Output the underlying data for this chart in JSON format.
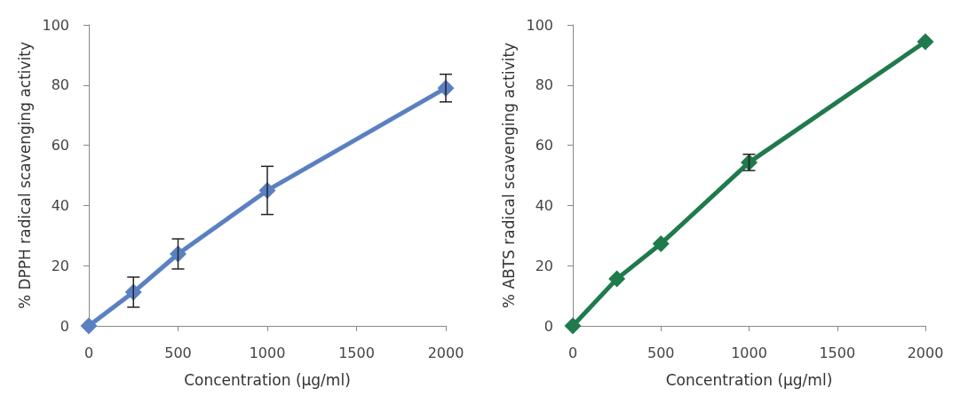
{
  "chart_data": [
    {
      "type": "line",
      "xlabel": "Concentration (µg/ml)",
      "ylabel": "% DPPH radical scavenging activity",
      "x": [
        0,
        250,
        500,
        1000,
        2000
      ],
      "series": [
        {
          "color": "#5b80c2",
          "values": [
            0,
            11.2,
            23.9,
            45,
            79
          ],
          "errors": [
            null,
            5,
            5,
            8,
            4.6
          ]
        }
      ],
      "xlim": [
        0,
        2000
      ],
      "xticks": [
        0,
        500,
        1000,
        1500,
        2000
      ],
      "ylim": [
        0,
        100
      ],
      "yticks": [
        0,
        20,
        40,
        60,
        80,
        100
      ],
      "grid": false,
      "marker": "diamond",
      "line_style": "solid"
    },
    {
      "type": "line",
      "xlabel": "Concentration (µg/ml)",
      "ylabel": "% ABTS radical scavenging activity",
      "x": [
        0,
        250,
        500,
        1000,
        2000
      ],
      "series": [
        {
          "color": "#1f7a4c",
          "values": [
            0,
            15.6,
            27.3,
            54.3,
            94.4
          ],
          "errors": [
            null,
            null,
            null,
            2.7,
            null
          ]
        }
      ],
      "xlim": [
        0,
        2000
      ],
      "xticks": [
        0,
        500,
        1000,
        1500,
        2000
      ],
      "ylim": [
        0,
        100
      ],
      "yticks": [
        0,
        20,
        40,
        60,
        80,
        100
      ],
      "grid": false,
      "marker": "diamond",
      "line_style": "solid"
    }
  ]
}
